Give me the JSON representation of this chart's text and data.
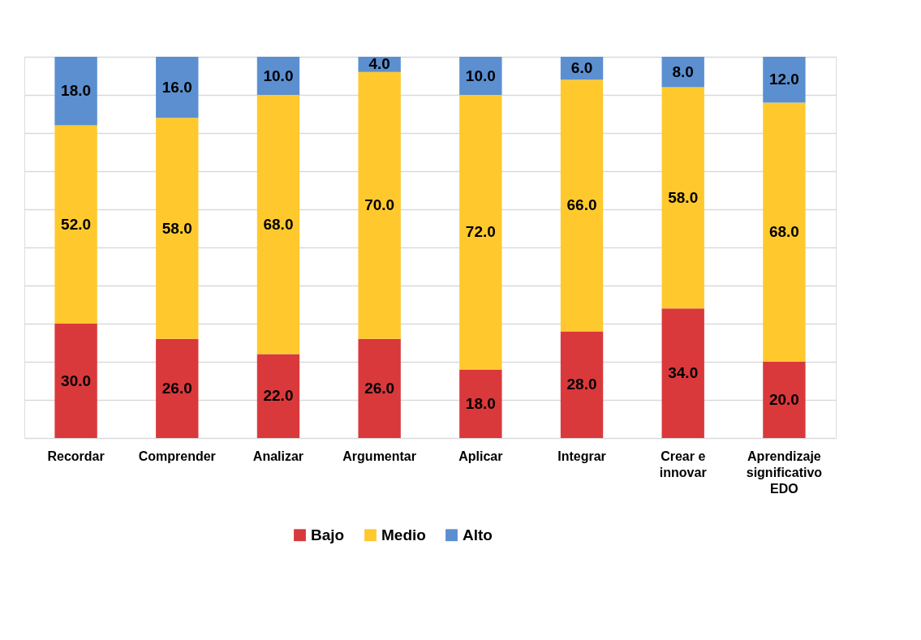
{
  "chart_data": {
    "type": "bar",
    "stacked": true,
    "grid": "y",
    "legend": "bottom",
    "tick_labels": "x",
    "categories": [
      "Recordar",
      "Comprender",
      "Analizar",
      "Argumentar",
      "Aplicar",
      "Integrar",
      "Crear e\ninnovar",
      "Aprendizaje\nsignificativo\nEDO"
    ],
    "series": [
      {
        "name": "Bajo",
        "color": "#d9393b",
        "values": [
          30,
          26,
          22,
          26,
          18,
          28,
          34,
          20
        ],
        "value_labels": [
          "30.0",
          "26.0",
          "22.0",
          "26.0",
          "18.0",
          "28.0",
          "34.0",
          "20.0"
        ]
      },
      {
        "name": "Medio",
        "color": "#ffc92e",
        "values": [
          52,
          58,
          68,
          70,
          72,
          66,
          58,
          68
        ],
        "value_labels": [
          "52.0",
          "58.0",
          "68.0",
          "70.0",
          "72.0",
          "66.0",
          "58.0",
          "68.0"
        ]
      },
      {
        "name": "Alto",
        "color": "#5b8fd0",
        "values": [
          18,
          16,
          10,
          4,
          10,
          6,
          8,
          12
        ],
        "value_labels": [
          "18.0",
          "16.0",
          "10.0",
          "4.0",
          "10.0",
          "6.0",
          "8.0",
          "12.0"
        ]
      }
    ]
  }
}
